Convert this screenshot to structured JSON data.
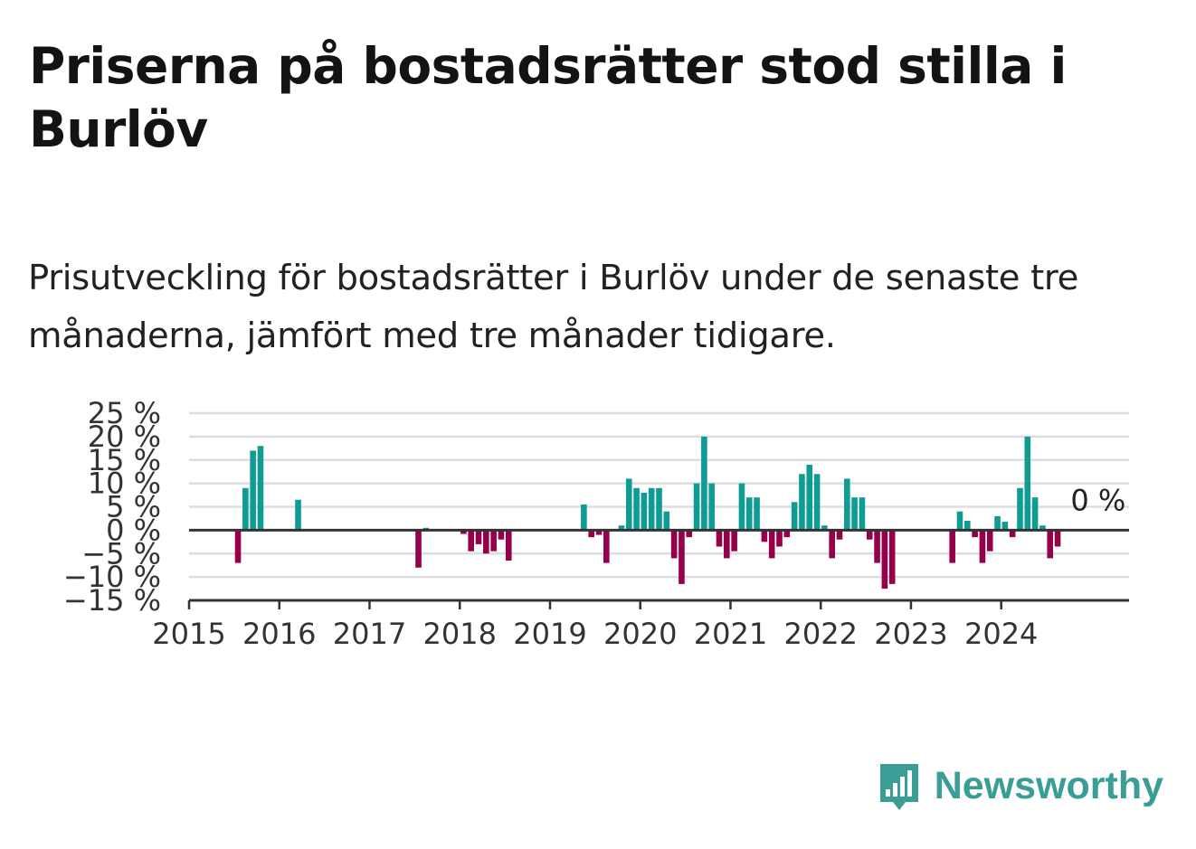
{
  "title": "Priserna på bostadsrätter stod stilla i Burlöv",
  "subtitle": "Prisutveckling för bostadsrätter i Burlöv under de senaste tre månaderna, jämfört med tre månader tidigare.",
  "brand": {
    "name": "Newsworthy",
    "icon": "bar-chart-speech-bubble-icon"
  },
  "colors": {
    "positive": "#0e9c94",
    "negative": "#96004b",
    "brand": "#3a9d96",
    "grid": "#dddddd",
    "axis": "#333333"
  },
  "chart_data": {
    "type": "bar",
    "title": "",
    "xlabel": "",
    "ylabel": "",
    "ylim": [
      -15,
      25
    ],
    "xlim": [
      "2015-01",
      "2025-06"
    ],
    "yticks": [
      -15,
      -10,
      -5,
      0,
      5,
      10,
      15,
      20,
      25
    ],
    "ytick_labels": [
      "−15 %",
      "−10 %",
      "−5 %",
      "0 %",
      "5 %",
      "10 %",
      "15 %",
      "20 %",
      "25 %"
    ],
    "xtick_labels": [
      "2015",
      "2016",
      "2017",
      "2018",
      "2019",
      "2020",
      "2021",
      "2022",
      "2023",
      "2024"
    ],
    "grid": true,
    "annotation": "0 %",
    "x": [
      "2015-07",
      "2015-08",
      "2015-09",
      "2015-10",
      "2016-03",
      "2017-07",
      "2017-08",
      "2018-01",
      "2018-02",
      "2018-03",
      "2018-04",
      "2018-05",
      "2018-06",
      "2018-07",
      "2019-05",
      "2019-06",
      "2019-07",
      "2019-08",
      "2019-10",
      "2019-11",
      "2019-12",
      "2020-01",
      "2020-02",
      "2020-03",
      "2020-04",
      "2020-05",
      "2020-06",
      "2020-07",
      "2020-08",
      "2020-09",
      "2020-10",
      "2020-11",
      "2020-12",
      "2021-01",
      "2021-02",
      "2021-03",
      "2021-04",
      "2021-05",
      "2021-06",
      "2021-07",
      "2021-08",
      "2021-09",
      "2021-10",
      "2021-11",
      "2021-12",
      "2022-01",
      "2022-02",
      "2022-03",
      "2022-04",
      "2022-05",
      "2022-06",
      "2022-07",
      "2022-08",
      "2022-09",
      "2022-10",
      "2023-06",
      "2023-07",
      "2023-08",
      "2023-09",
      "2023-10",
      "2023-11",
      "2023-12",
      "2024-01",
      "2024-02",
      "2024-03",
      "2024-04",
      "2024-05",
      "2024-06",
      "2024-07",
      "2024-08",
      "2024-09"
    ],
    "values": [
      -7,
      9,
      17,
      18,
      6.5,
      -8,
      0.5,
      -0.8,
      -4.5,
      -3,
      -5,
      -4.5,
      -2,
      -6.5,
      5.5,
      -1.5,
      -1,
      -7,
      1,
      11,
      9,
      8,
      9,
      9,
      4,
      -6,
      -11.5,
      -1.5,
      10,
      20,
      10,
      -3.5,
      -6,
      -4.5,
      10,
      7,
      7,
      -2.5,
      -6,
      -3.5,
      -1.5,
      6,
      12,
      14,
      12,
      1,
      -6,
      -2,
      11,
      7,
      7,
      -2,
      -7,
      -12.5,
      -11.5,
      -7,
      4,
      2,
      -1.5,
      -7,
      -4.5,
      3,
      1.8,
      -1.5,
      9,
      20,
      7,
      1,
      -6,
      -3.5,
      0
    ]
  }
}
